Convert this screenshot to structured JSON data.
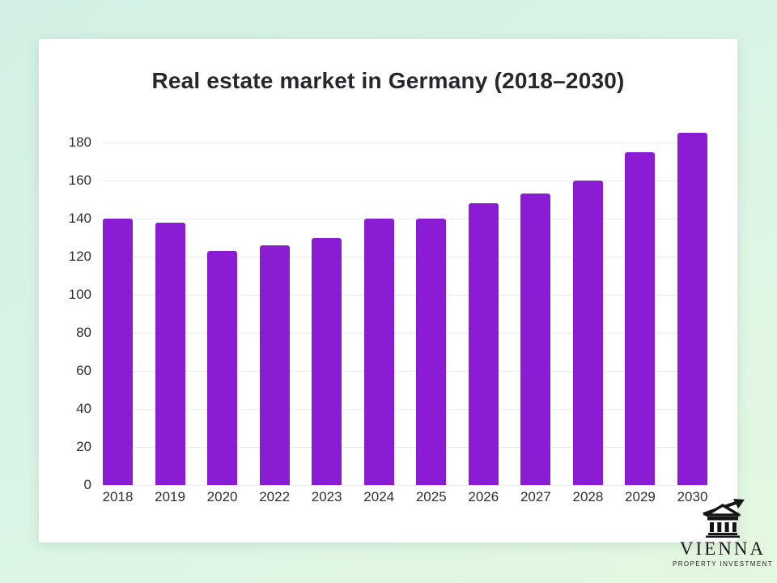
{
  "chart_data": {
    "type": "bar",
    "title": "Real estate market in Germany (2018–2030)",
    "categories": [
      "2018",
      "2019",
      "2020",
      "2022",
      "2023",
      "2024",
      "2025",
      "2026",
      "2027",
      "2028",
      "2029",
      "2030"
    ],
    "values": [
      140,
      138,
      123,
      126,
      130,
      140,
      140,
      148,
      153,
      160,
      175,
      185
    ],
    "xlabel": "",
    "ylabel": "",
    "ylim": [
      0,
      190
    ],
    "yticks": [
      0,
      20,
      40,
      60,
      80,
      100,
      120,
      140,
      160,
      180
    ],
    "grid": "horizontal",
    "legend": "none",
    "bar_color": "#8a1cd4",
    "gridline_color": "#e9e9f0"
  },
  "colors": {
    "background_start": "#d2f0e3",
    "background_end": "#e5f8e0",
    "card": "#ffffff",
    "title_text": "#27272e",
    "axis_text": "#2e2e35",
    "logo_ink": "#141414"
  },
  "logo": {
    "brand": "VIENNA",
    "tagline": "PROPERTY INVESTMENT",
    "icon": "bank-building-with-growth-arrow"
  }
}
